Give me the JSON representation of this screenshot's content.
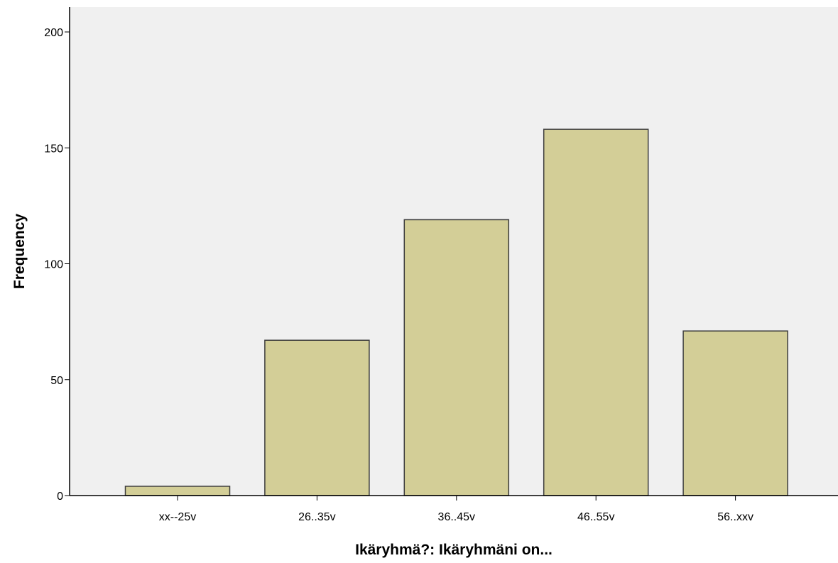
{
  "chart_data": {
    "type": "bar",
    "title": "",
    "xlabel": "Ikäryhmä?: Ikäryhmäni on...",
    "ylabel": "Frequency",
    "categories": [
      "xx--25v",
      "26..35v",
      "36..45v",
      "46..55v",
      "56..xxv"
    ],
    "values": [
      4,
      67,
      119,
      158,
      71
    ],
    "ylim": [
      0,
      210
    ],
    "yticks": [
      0,
      50,
      100,
      150,
      200
    ],
    "grid": false,
    "legend": "none",
    "colors": {
      "plot_background": "#f0f0f0",
      "bar_fill": "#d3ce97",
      "bar_stroke": "#3c3c3c",
      "axis": "#000000"
    }
  }
}
